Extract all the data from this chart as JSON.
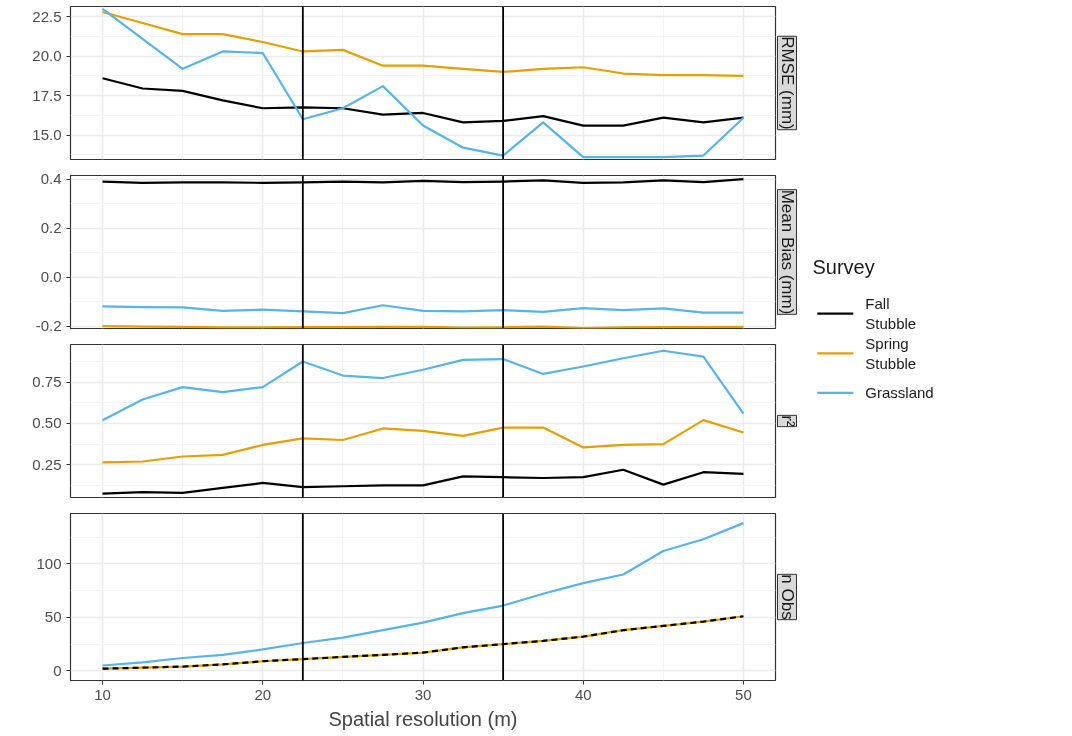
{
  "chart_data": [
    {
      "type": "line",
      "ylabel": "RMSE (mm)",
      "xlim": [
        8,
        52
      ],
      "xticks": [
        10,
        20,
        30,
        40,
        50
      ],
      "ylim": [
        13.45,
        23.15
      ],
      "yticks": [
        {
          "value": 15,
          "label": "15.0"
        },
        17.5,
        {
          "value": 20,
          "label": "20.0"
        },
        22.5
      ],
      "grid": true,
      "tick_labels": "y",
      "legend": "right",
      "legend_title": "Survey",
      "x": [
        10,
        12.5,
        15,
        17.5,
        20,
        22.5,
        25,
        27.5,
        30,
        32.5,
        35,
        37.5,
        40,
        42.5,
        45,
        47.5,
        50
      ],
      "ref_lines": [
        {
          "axis": "x",
          "value": 22.5,
          "color": "#000000"
        },
        {
          "axis": "x",
          "value": 35,
          "color": "#000000"
        }
      ],
      "series": [
        {
          "name": "Fall\nStubble",
          "color": "#000000",
          "values": [
            18.6,
            17.95,
            17.8,
            17.2,
            16.7,
            16.75,
            16.7,
            16.3,
            16.4,
            15.8,
            15.9,
            16.2,
            15.6,
            15.6,
            16.1,
            15.8,
            16.1
          ]
        },
        {
          "name": "Spring\nStubble",
          "color": "#e69f00",
          "values": [
            22.8,
            22.1,
            21.4,
            21.4,
            20.9,
            20.3,
            20.4,
            19.4,
            19.4,
            19.2,
            19.0,
            19.2,
            19.3,
            18.9,
            18.8,
            18.8,
            18.75
          ]
        },
        {
          "name": "Grassland",
          "color": "#56b4e9",
          "values": [
            23.0,
            21.1,
            19.2,
            20.3,
            20.2,
            16.0,
            16.7,
            18.1,
            15.6,
            14.2,
            13.7,
            15.8,
            13.6,
            13.6,
            13.6,
            13.7,
            16.1
          ]
        }
      ]
    },
    {
      "type": "line",
      "ylabel": "Mean Bias (mm)",
      "xlim": [
        8,
        52
      ],
      "xticks": [
        10,
        20,
        30,
        40,
        50
      ],
      "ylim": [
        -0.21,
        0.415
      ],
      "yticks": [
        -0.2,
        {
          "value": 0,
          "label": "0.0"
        },
        0.2,
        0.4
      ],
      "grid": true,
      "tick_labels": "y",
      "x": [
        10,
        12.5,
        15,
        17.5,
        20,
        22.5,
        25,
        27.5,
        30,
        32.5,
        35,
        37.5,
        40,
        42.5,
        45,
        47.5,
        50
      ],
      "ref_lines": [
        {
          "axis": "x",
          "value": 22.5,
          "color": "#000000"
        },
        {
          "axis": "x",
          "value": 35,
          "color": "#000000"
        }
      ],
      "series": [
        {
          "color": "#000000",
          "values": [
            0.39,
            0.385,
            0.387,
            0.387,
            0.385,
            0.387,
            0.39,
            0.387,
            0.393,
            0.388,
            0.39,
            0.395,
            0.385,
            0.387,
            0.395,
            0.388,
            0.4
          ]
        },
        {
          "color": "#e69f00",
          "values": [
            -0.2,
            -0.202,
            -0.203,
            -0.205,
            -0.205,
            -0.204,
            -0.204,
            -0.203,
            -0.203,
            -0.206,
            -0.205,
            -0.202,
            -0.208,
            -0.205,
            -0.204,
            -0.204,
            -0.203
          ]
        },
        {
          "color": "#56b4e9",
          "values": [
            -0.12,
            -0.123,
            -0.124,
            -0.138,
            -0.133,
            -0.14,
            -0.147,
            -0.115,
            -0.138,
            -0.14,
            -0.135,
            -0.142,
            -0.127,
            -0.135,
            -0.128,
            -0.145,
            -0.145
          ]
        }
      ]
    },
    {
      "type": "line",
      "ylabel": "r²",
      "xlim": [
        8,
        52
      ],
      "xticks": [
        10,
        20,
        30,
        40,
        50
      ],
      "ylim": [
        0.052,
        0.978
      ],
      "yticks": [
        0.25,
        {
          "value": 0.5,
          "label": "0.50"
        },
        0.75
      ],
      "grid": true,
      "tick_labels": "y",
      "x": [
        10,
        12.5,
        15,
        17.5,
        20,
        22.5,
        25,
        27.5,
        30,
        32.5,
        35,
        37.5,
        40,
        42.5,
        45,
        47.5,
        50
      ],
      "ref_lines": [
        {
          "axis": "x",
          "value": 22.5,
          "color": "#000000"
        },
        {
          "axis": "x",
          "value": 35,
          "color": "#000000"
        }
      ],
      "series": [
        {
          "color": "#000000",
          "values": [
            0.075,
            0.085,
            0.08,
            0.11,
            0.14,
            0.115,
            0.12,
            0.125,
            0.125,
            0.18,
            0.175,
            0.17,
            0.175,
            0.22,
            0.13,
            0.205,
            0.195
          ]
        },
        {
          "color": "#e69f00",
          "values": [
            0.265,
            0.27,
            0.3,
            0.31,
            0.37,
            0.41,
            0.4,
            0.47,
            0.455,
            0.425,
            0.475,
            0.475,
            0.355,
            0.37,
            0.375,
            0.52,
            0.445
          ]
        },
        {
          "color": "#56b4e9",
          "values": [
            0.52,
            0.645,
            0.72,
            0.69,
            0.72,
            0.875,
            0.79,
            0.775,
            0.825,
            0.885,
            0.89,
            0.8,
            0.845,
            0.895,
            0.94,
            0.905,
            0.56
          ]
        }
      ]
    },
    {
      "type": "line",
      "ylabel": "n Obs",
      "xlabel": "Spatial resolution (m)",
      "xlim": [
        8,
        52
      ],
      "xticks": [
        10,
        20,
        30,
        40,
        50
      ],
      "ylim": [
        -9,
        147
      ],
      "yticks": [
        0,
        50,
        100
      ],
      "grid": true,
      "x": [
        10,
        12.5,
        15,
        17.5,
        20,
        22.5,
        25,
        27.5,
        30,
        32.5,
        35,
        37.5,
        40,
        42.5,
        45,
        47.5,
        50
      ],
      "ref_lines": [
        {
          "axis": "x",
          "value": 22.5,
          "color": "#000000"
        },
        {
          "axis": "x",
          "value": 35,
          "color": "#000000"
        }
      ],
      "series": [
        {
          "color": "#e69f00",
          "values": [
            2,
            3,
            4,
            6,
            9,
            11,
            13,
            15,
            17,
            22,
            25,
            28,
            32,
            38,
            42,
            46,
            51
          ]
        },
        {
          "color": "#000000",
          "line_style": "dashed",
          "values": [
            2,
            3,
            4,
            6,
            9,
            11,
            13,
            15,
            17,
            22,
            25,
            28,
            32,
            38,
            42,
            46,
            51
          ]
        },
        {
          "color": "#56b4e9",
          "values": [
            5,
            8,
            12,
            15,
            20,
            26,
            31,
            38,
            45,
            54,
            61,
            72,
            82,
            90,
            112,
            123,
            138
          ]
        }
      ]
    }
  ]
}
